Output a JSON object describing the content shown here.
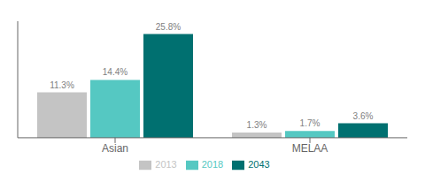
{
  "chart_data": {
    "type": "bar",
    "categories": [
      "Asian",
      "MELAA"
    ],
    "series": [
      {
        "name": "2013",
        "color": "#c4c4c4",
        "values": [
          11.3,
          1.3
        ],
        "value_labels": [
          "11.3%",
          "1.3%"
        ]
      },
      {
        "name": "2018",
        "color": "#55c8c2",
        "values": [
          14.4,
          1.7
        ],
        "value_labels": [
          "14.4%",
          "1.7%"
        ]
      },
      {
        "name": "2043",
        "color": "#007070",
        "values": [
          25.8,
          3.6
        ],
        "value_labels": [
          "25.8%",
          "3.6%"
        ]
      }
    ],
    "ylim": [
      0,
      29
    ],
    "data_labels": true,
    "tick_labels": "x",
    "legend": "bottom"
  }
}
